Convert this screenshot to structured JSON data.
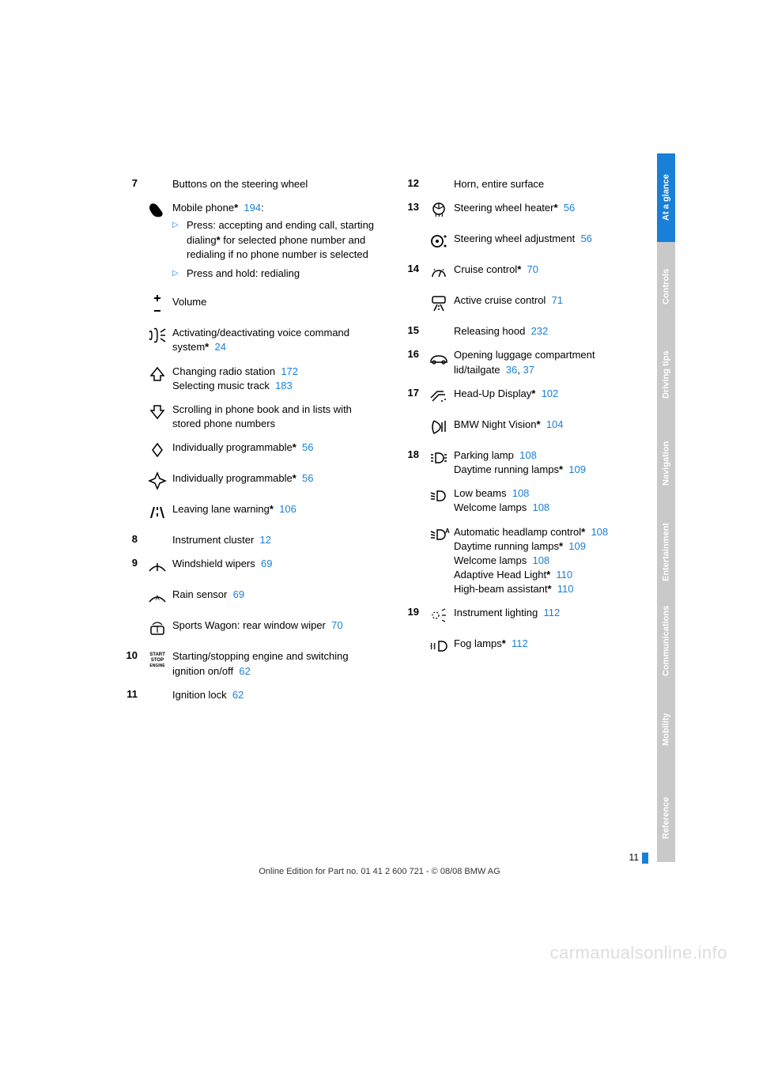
{
  "colors": {
    "link": "#1a7fd6",
    "tab_active": "#1a7fd6",
    "tab_inactive": "#c9c9c9",
    "text": "#000"
  },
  "tabs": [
    {
      "label": "At a glance",
      "active": true
    },
    {
      "label": "Controls",
      "active": false
    },
    {
      "label": "Driving tips",
      "active": false
    },
    {
      "label": "Navigation",
      "active": false
    },
    {
      "label": "Entertainment",
      "active": false
    },
    {
      "label": "Communications",
      "active": false
    },
    {
      "label": "Mobility",
      "active": false
    },
    {
      "label": "Reference",
      "active": false
    }
  ],
  "left": [
    {
      "num": "7",
      "title": "Buttons on the steering wheel",
      "rows": [
        {
          "icon": "phone",
          "lines": [
            {
              "text": "Mobile phone",
              "star": true,
              "ref": "194",
              "suffix": ":"
            }
          ],
          "sub": [
            {
              "text": "Press: accepting and ending call, starting dialing",
              "star": true,
              "cont": " for selected phone number and redialing if no phone number is selected"
            },
            {
              "text": "Press and hold: redialing"
            }
          ]
        },
        {
          "icon": "plusminus",
          "lines": [
            {
              "text": "Volume"
            }
          ]
        },
        {
          "icon": "voice",
          "lines": [
            {
              "text": "Activating/deactivating voice command system",
              "star": true,
              "ref": "24"
            }
          ]
        },
        {
          "icon": "up",
          "lines": [
            {
              "text": "Changing radio station",
              "ref": "172"
            },
            {
              "text": "Selecting music track",
              "ref": "183"
            }
          ]
        },
        {
          "icon": "down",
          "lines": [
            {
              "text": "Scrolling in phone book and in lists with stored phone numbers"
            }
          ]
        },
        {
          "icon": "diamond1",
          "lines": [
            {
              "text": "Individually programmable",
              "star": true,
              "ref": "56"
            }
          ]
        },
        {
          "icon": "diamond2",
          "lines": [
            {
              "text": "Individually programmable",
              "star": true,
              "ref": "56"
            }
          ]
        },
        {
          "icon": "lane",
          "lines": [
            {
              "text": "Leaving lane warning",
              "star": true,
              "ref": "106"
            }
          ]
        }
      ]
    },
    {
      "num": "8",
      "title": "Instrument cluster",
      "ref": "12"
    },
    {
      "num": "9",
      "rows": [
        {
          "icon": "wiper",
          "lines": [
            {
              "text": "Windshield wipers",
              "ref": "69"
            }
          ]
        },
        {
          "icon": "rainsensor",
          "lines": [
            {
              "text": "Rain sensor",
              "ref": "69"
            }
          ]
        },
        {
          "icon": "rearwiper",
          "lines": [
            {
              "text": "Sports Wagon: rear window wiper",
              "ref": "70"
            }
          ]
        }
      ]
    },
    {
      "num": "10",
      "rows": [
        {
          "icon": "startstop",
          "lines": [
            {
              "text": "Starting/stopping engine and switching ignition on/off",
              "ref": "62"
            }
          ]
        }
      ]
    },
    {
      "num": "11",
      "title": "Ignition lock",
      "ref": "62"
    }
  ],
  "right": [
    {
      "num": "12",
      "title": "Horn, entire surface"
    },
    {
      "num": "13",
      "rows": [
        {
          "icon": "wheelheat",
          "lines": [
            {
              "text": "Steering wheel heater",
              "star": true,
              "ref": "56"
            }
          ]
        },
        {
          "icon": "wheeladj",
          "lines": [
            {
              "text": "Steering wheel adjustment",
              "ref": "56"
            }
          ]
        }
      ]
    },
    {
      "num": "14",
      "rows": [
        {
          "icon": "cruise",
          "lines": [
            {
              "text": "Cruise control",
              "star": true,
              "ref": "70"
            }
          ]
        },
        {
          "icon": "activecruise",
          "lines": [
            {
              "text": "Active cruise control",
              "ref": "71"
            }
          ]
        }
      ]
    },
    {
      "num": "15",
      "title": "Releasing hood",
      "ref": "232"
    },
    {
      "num": "16",
      "rows": [
        {
          "icon": "trunk",
          "lines": [
            {
              "text": "Opening luggage compartment lid/tailgate",
              "ref": "36",
              "ref2": "37"
            }
          ]
        }
      ]
    },
    {
      "num": "17",
      "rows": [
        {
          "icon": "hud",
          "lines": [
            {
              "text": "Head-Up Display",
              "star": true,
              "ref": "102"
            }
          ]
        },
        {
          "icon": "nightvision",
          "lines": [
            {
              "text": "BMW Night Vision",
              "star": true,
              "ref": "104"
            }
          ]
        }
      ]
    },
    {
      "num": "18",
      "rows": [
        {
          "icon": "parklamp",
          "lines": [
            {
              "text": "Parking lamp",
              "ref": "108"
            },
            {
              "text": "Daytime running lamps",
              "star": true,
              "ref": "109"
            }
          ]
        },
        {
          "icon": "lowbeam",
          "lines": [
            {
              "text": "Low beams",
              "ref": "108"
            },
            {
              "text": "Welcome lamps",
              "ref": "108"
            }
          ]
        },
        {
          "icon": "autohead",
          "lines": [
            {
              "text": "Automatic headlamp control",
              "star": true,
              "ref": "108"
            },
            {
              "text": "Daytime running lamps",
              "star": true,
              "ref": "109"
            },
            {
              "text": "Welcome lamps",
              "ref": "108"
            },
            {
              "text": "Adaptive Head Light",
              "star": true,
              "ref": "110"
            },
            {
              "text": "High-beam assistant",
              "star": true,
              "ref": "110"
            }
          ]
        }
      ]
    },
    {
      "num": "19",
      "rows": [
        {
          "icon": "instlight",
          "lines": [
            {
              "text": "Instrument lighting",
              "ref": "112"
            }
          ]
        },
        {
          "icon": "foglamp",
          "lines": [
            {
              "text": "Fog lamps",
              "star": true,
              "ref": "112"
            }
          ]
        }
      ]
    }
  ],
  "page_number": "11",
  "footer": "Online Edition for Part no. 01 41 2 600 721 - © 08/08 BMW AG",
  "watermark": "carmanualsonline.info"
}
